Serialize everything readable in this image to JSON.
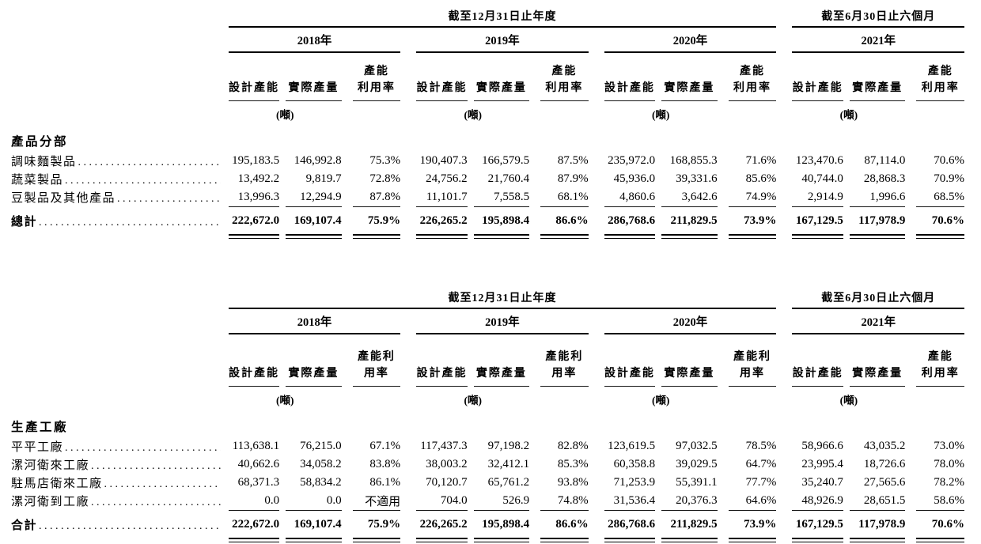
{
  "tables": [
    {
      "name": "product-segment-capacity-table",
      "section_label": "產品分部",
      "spanners": [
        {
          "label": "截至12月31日止年度"
        },
        {
          "label": "截至6月30日止六個月"
        }
      ],
      "groups": [
        {
          "year": "2018年",
          "col_headers": [
            "設計產能",
            "實際產量",
            "產能\n利用率"
          ],
          "unit": "(噸)"
        },
        {
          "year": "2019年",
          "col_headers": [
            "設計產能",
            "實際產量",
            "產能\n利用率"
          ],
          "unit": "(噸)"
        },
        {
          "year": "2020年",
          "col_headers": [
            "設計產能",
            "實際產量",
            "產能\n利用率"
          ],
          "unit": "(噸)"
        },
        {
          "year": "2021年",
          "col_headers": [
            "設計產能",
            "實際產量",
            "產能\n利用率"
          ],
          "unit": "(噸)"
        }
      ],
      "rows": [
        {
          "label": "調味麵製品",
          "values": [
            "195,183.5",
            "146,992.8",
            "75.3%",
            "190,407.3",
            "166,579.5",
            "87.5%",
            "235,972.0",
            "168,855.3",
            "71.6%",
            "123,470.6",
            "87,114.0",
            "70.6%"
          ]
        },
        {
          "label": "蔬菜製品",
          "values": [
            "13,492.2",
            "9,819.7",
            "72.8%",
            "24,756.2",
            "21,760.4",
            "87.9%",
            "45,936.0",
            "39,331.6",
            "85.6%",
            "40,744.0",
            "28,868.3",
            "70.9%"
          ]
        },
        {
          "label": "豆製品及其他產品",
          "values": [
            "13,996.3",
            "12,294.9",
            "87.8%",
            "11,101.7",
            "7,558.5",
            "68.1%",
            "4,860.6",
            "3,642.6",
            "74.9%",
            "2,914.9",
            "1,996.6",
            "68.5%"
          ]
        }
      ],
      "total_row": {
        "label": "總計",
        "values": [
          "222,672.0",
          "169,107.4",
          "75.9%",
          "226,265.2",
          "195,898.4",
          "86.6%",
          "286,768.6",
          "211,829.5",
          "73.9%",
          "167,129.5",
          "117,978.9",
          "70.6%"
        ]
      }
    },
    {
      "name": "factory-capacity-table",
      "section_label": "生產工廠",
      "spanners": [
        {
          "label": "截至12月31日止年度"
        },
        {
          "label": "截至6月30日止六個月"
        }
      ],
      "groups": [
        {
          "year": "2018年",
          "col_headers": [
            "設計產能",
            "實際產量",
            "產能利用率"
          ],
          "unit": "(噸)"
        },
        {
          "year": "2019年",
          "col_headers": [
            "設計產能",
            "實際產量",
            "產能利用率"
          ],
          "unit": "(噸)"
        },
        {
          "year": "2020年",
          "col_headers": [
            "設計產能",
            "實際產量",
            "產能利用率"
          ],
          "unit": "(噸)"
        },
        {
          "year": "2021年",
          "col_headers": [
            "設計產能",
            "實際產量",
            "產能\n利用率"
          ],
          "unit": "(噸)"
        }
      ],
      "rows": [
        {
          "label": "平平工廠",
          "values": [
            "113,638.1",
            "76,215.0",
            "67.1%",
            "117,437.3",
            "97,198.2",
            "82.8%",
            "123,619.5",
            "97,032.5",
            "78.5%",
            "58,966.6",
            "43,035.2",
            "73.0%"
          ]
        },
        {
          "label": "漯河衛來工廠",
          "values": [
            "40,662.6",
            "34,058.2",
            "83.8%",
            "38,003.2",
            "32,412.1",
            "85.3%",
            "60,358.8",
            "39,029.5",
            "64.7%",
            "23,995.4",
            "18,726.6",
            "78.0%"
          ]
        },
        {
          "label": "駐馬店衛來工廠",
          "values": [
            "68,371.3",
            "58,834.2",
            "86.1%",
            "70,120.7",
            "65,761.2",
            "93.8%",
            "71,253.9",
            "55,391.1",
            "77.7%",
            "35,240.7",
            "27,565.6",
            "78.2%"
          ]
        },
        {
          "label": "漯河衛到工廠",
          "values": [
            "0.0",
            "0.0",
            "不適用",
            "704.0",
            "526.9",
            "74.8%",
            "31,536.4",
            "20,376.3",
            "64.6%",
            "48,926.9",
            "28,651.5",
            "58.6%"
          ]
        }
      ],
      "total_row": {
        "label": "合計",
        "values": [
          "222,672.0",
          "169,107.4",
          "75.9%",
          "226,265.2",
          "195,898.4",
          "86.6%",
          "286,768.6",
          "211,829.5",
          "73.9%",
          "167,129.5",
          "117,978.9",
          "70.6%"
        ]
      }
    }
  ]
}
